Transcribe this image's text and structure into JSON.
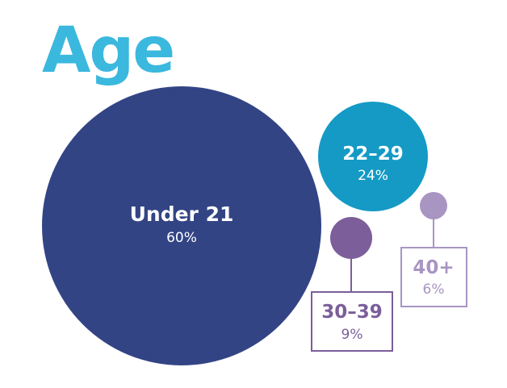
{
  "title": "Age",
  "colors": {
    "title": "#3bb8de",
    "under21": "#334485",
    "age22_29": "#149ac5",
    "age30_39": "#7b5e9a",
    "age40plus": "#a895c2",
    "text_on_dark": "#ffffff"
  },
  "chart_data": {
    "type": "bubble",
    "title": "Age",
    "categories": [
      "Under 21",
      "22–29",
      "30–39",
      "40+"
    ],
    "values": [
      60,
      24,
      9,
      6
    ],
    "value_labels": [
      "60%",
      "24%",
      "9%",
      "6%"
    ],
    "unit": "%"
  }
}
